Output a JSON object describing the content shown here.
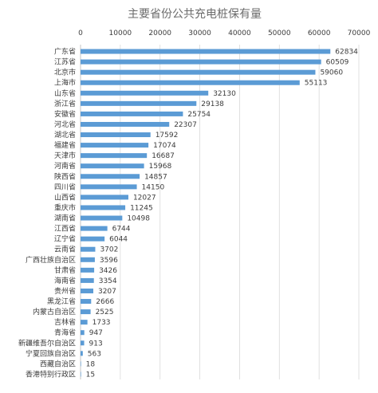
{
  "chart_data": {
    "type": "bar",
    "orientation": "horizontal",
    "title": "主要省份公共充电桩保有量",
    "xlabel": "",
    "ylabel": "",
    "xlim": [
      0,
      70000
    ],
    "x_ticks": [
      "0",
      "10000",
      "20000",
      "30000",
      "40000",
      "50000",
      "60000",
      "70000"
    ],
    "x_tick_values": [
      0,
      10000,
      20000,
      30000,
      40000,
      50000,
      60000,
      70000
    ],
    "grid": true,
    "legend": "none",
    "bar_color": "#5b9bd5",
    "categories": [
      "广东省",
      "江苏省",
      "北京市",
      "上海市",
      "山东省",
      "浙江省",
      "安徽省",
      "河北省",
      "湖北省",
      "福建省",
      "天津市",
      "河南省",
      "陕西省",
      "四川省",
      "山西省",
      "重庆市",
      "湖南省",
      "江西省",
      "辽宁省",
      "云南省",
      "广西壮族自治区",
      "甘肃省",
      "海南省",
      "贵州省",
      "黑龙江省",
      "内蒙古自治区",
      "吉林省",
      "青海省",
      "新疆维吾尔自治区",
      "宁夏回族自治区",
      "西藏自治区",
      "香港特别行政区"
    ],
    "values": [
      62834,
      60509,
      59060,
      55113,
      32130,
      29138,
      25754,
      22307,
      17592,
      17074,
      16687,
      15968,
      14857,
      14150,
      12027,
      11245,
      10498,
      6744,
      6044,
      3702,
      3596,
      3426,
      3354,
      3207,
      2666,
      2525,
      1733,
      947,
      913,
      563,
      18,
      15
    ],
    "value_labels": [
      "62834",
      "60509",
      "59060",
      "55113",
      "32130",
      "29138",
      "25754",
      "22307",
      "17592",
      "17074",
      "16687",
      "15968",
      "14857",
      "14150",
      "12027",
      "11245",
      "10498",
      "6744",
      "6044",
      "3702",
      "3596",
      "3426",
      "3354",
      "3207",
      "2666",
      "2525",
      "1733",
      "947",
      "913",
      "563",
      "18",
      "15"
    ]
  }
}
